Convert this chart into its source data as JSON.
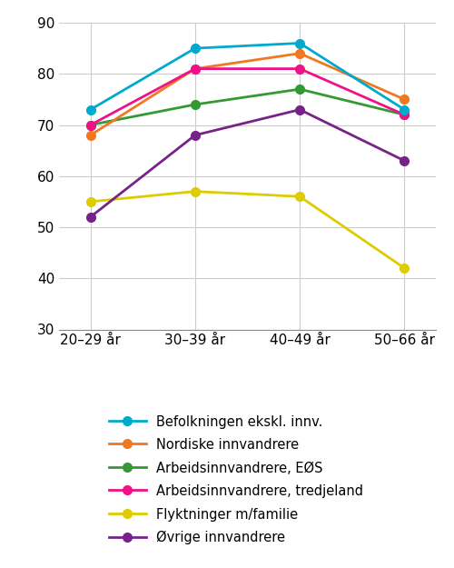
{
  "x_labels": [
    "20–29 år",
    "30–39 år",
    "40–49 år",
    "50–66 år"
  ],
  "x_positions": [
    0,
    1,
    2,
    3
  ],
  "series": [
    {
      "label": "Befolkningen ekskl. innv.",
      "values": [
        73,
        85,
        86,
        73
      ],
      "color": "#00AACC",
      "marker": "o",
      "zorder": 5
    },
    {
      "label": "Nordiske innvandrere",
      "values": [
        68,
        81,
        84,
        75
      ],
      "color": "#F07820",
      "marker": "o",
      "zorder": 4
    },
    {
      "label": "Arbeidsinnvandrere, EØS",
      "values": [
        70,
        74,
        77,
        72
      ],
      "color": "#339933",
      "marker": "o",
      "zorder": 3
    },
    {
      "label": "Arbeidsinnvandrere, tredjeland",
      "values": [
        70,
        81,
        81,
        72
      ],
      "color": "#EE1188",
      "marker": "o",
      "zorder": 4
    },
    {
      "label": "Flyktninger m/familie",
      "values": [
        55,
        57,
        56,
        42
      ],
      "color": "#DDCC00",
      "marker": "o",
      "zorder": 2
    },
    {
      "label": "Øvrige innvandrere",
      "values": [
        52,
        68,
        73,
        63
      ],
      "color": "#772288",
      "marker": "o",
      "zorder": 3
    }
  ],
  "ylim": [
    30,
    90
  ],
  "yticks": [
    30,
    40,
    50,
    60,
    70,
    80,
    90
  ],
  "linewidth": 2.0,
  "markersize": 7,
  "grid_color": "#CCCCCC",
  "background_color": "#FFFFFF",
  "legend_fontsize": 10.5,
  "tick_fontsize": 11
}
